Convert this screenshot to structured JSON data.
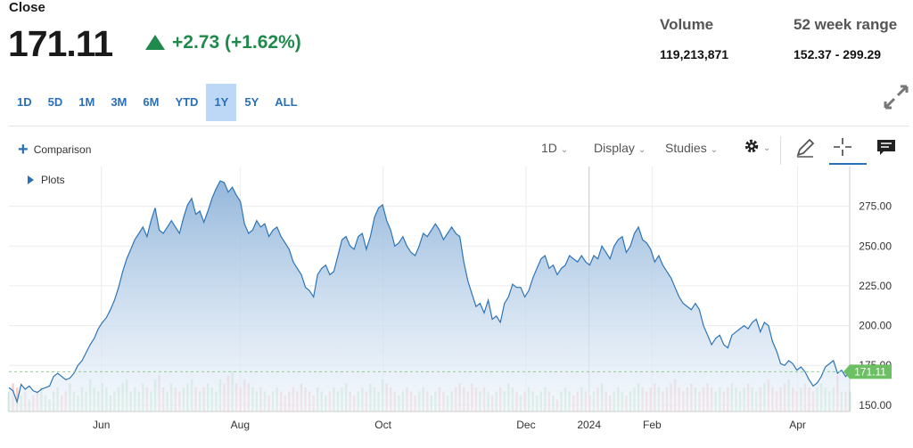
{
  "header": {
    "close_label": "Close",
    "price": "171.11",
    "change": "+2.73 (+1.62%)",
    "direction": "up",
    "up_color": "#1f8a4c"
  },
  "stats": {
    "volume_label": "Volume",
    "volume_value": "119,213,871",
    "range_label": "52 week range",
    "range_value": "152.37 - 299.29"
  },
  "range_tabs": [
    {
      "label": "1D"
    },
    {
      "label": "5D"
    },
    {
      "label": "1M"
    },
    {
      "label": "3M"
    },
    {
      "label": "6M"
    },
    {
      "label": "YTD"
    },
    {
      "label": "1Y",
      "active": true
    },
    {
      "label": "5Y"
    },
    {
      "label": "ALL"
    }
  ],
  "toolbar": {
    "comparison_label": "Comparison",
    "interval_label": "1D",
    "display_label": "Display",
    "studies_label": "Studies",
    "plots_label": "Plots",
    "expand_icon": "expand-icon",
    "settings_icon": "gear-icon",
    "draw_icon": "pencil-icon",
    "crosshair_icon": "crosshair-icon",
    "comment_icon": "comment-icon"
  },
  "colors": {
    "line": "#2d75b6",
    "fill_top": "#8eb3d9",
    "accent": "#2a6fb7",
    "last_price_tag": "#6cbf63"
  },
  "chart_data": {
    "type": "area",
    "title": "",
    "ylim": [
      146,
      300
    ],
    "y_ticks": [
      "150.00",
      "175.00",
      "200.00",
      "225.00",
      "250.00",
      "275.00"
    ],
    "x_tick_labels": [
      "Jun",
      "Aug",
      "Oct",
      "Dec",
      "2024",
      "Feb",
      "Apr"
    ],
    "last_price_label": "171.11",
    "grid": true,
    "series": [
      {
        "values": [
          161,
          159,
          152,
          163,
          160,
          162,
          159,
          158,
          160,
          161,
          162,
          168,
          170,
          168,
          166,
          167,
          170,
          175,
          178,
          183,
          188,
          192,
          198,
          202,
          205,
          210,
          216,
          224,
          234,
          242,
          248,
          254,
          258,
          262,
          256,
          266,
          274,
          260,
          258,
          262,
          266,
          262,
          258,
          268,
          276,
          280,
          270,
          272,
          265,
          272,
          280,
          286,
          291,
          290,
          284,
          287,
          282,
          278,
          264,
          258,
          260,
          266,
          262,
          264,
          256,
          260,
          262,
          256,
          252,
          248,
          240,
          236,
          232,
          224,
          222,
          218,
          232,
          236,
          238,
          232,
          234,
          244,
          254,
          256,
          250,
          248,
          256,
          258,
          248,
          256,
          268,
          274,
          276,
          266,
          260,
          250,
          252,
          256,
          250,
          246,
          244,
          250,
          258,
          256,
          260,
          264,
          260,
          254,
          258,
          262,
          258,
          256,
          240,
          228,
          220,
          212,
          214,
          208,
          216,
          204,
          206,
          202,
          214,
          218,
          226,
          224,
          224,
          218,
          222,
          230,
          236,
          242,
          244,
          236,
          238,
          232,
          236,
          238,
          244,
          242,
          240,
          244,
          240,
          238,
          244,
          242,
          250,
          246,
          242,
          250,
          254,
          256,
          246,
          250,
          258,
          262,
          254,
          252,
          248,
          240,
          244,
          238,
          234,
          230,
          224,
          218,
          214,
          212,
          210,
          214,
          210,
          200,
          194,
          188,
          192,
          194,
          188,
          186,
          194,
          196,
          198,
          200,
          198,
          202,
          204,
          196,
          202,
          200,
          190,
          184,
          176,
          175,
          178,
          176,
          172,
          174,
          171,
          166,
          162,
          164,
          168,
          174,
          176,
          178,
          170,
          172,
          168,
          171
        ],
        "volumes_relative": [
          0.5,
          0.7,
          0.6,
          0.4,
          0.5,
          0.3,
          0.4,
          0.5,
          0.6,
          0.4,
          0.3,
          0.5,
          0.6,
          0.4,
          0.5,
          0.7,
          0.5,
          0.4,
          0.6,
          0.5,
          0.8,
          0.6,
          0.5,
          0.7,
          0.6,
          0.4,
          0.5,
          0.6,
          0.7,
          0.8,
          0.5,
          0.6,
          0.5,
          0.7,
          0.6,
          0.5,
          0.8,
          0.9,
          0.6,
          0.5,
          0.7,
          0.6,
          0.5,
          0.6,
          0.7,
          0.8,
          0.6,
          0.5,
          0.6,
          0.7,
          0.6,
          0.5,
          0.8,
          0.7,
          0.9,
          1.0,
          0.7,
          0.6,
          0.8,
          0.7,
          0.6,
          0.5,
          0.6,
          0.5,
          0.4,
          0.5,
          0.6,
          0.5,
          0.4,
          0.5,
          0.6,
          0.5,
          0.7,
          0.6,
          0.5,
          0.4,
          0.6,
          0.5,
          0.4,
          0.5,
          0.6,
          0.5,
          0.6,
          0.7,
          0.5,
          0.4,
          0.5,
          0.6,
          0.5,
          0.7,
          0.6,
          0.5,
          0.8,
          0.7,
          0.6,
          0.5,
          0.4,
          0.5,
          0.6,
          0.5,
          0.4,
          0.5,
          0.6,
          0.5,
          0.4,
          0.5,
          0.6,
          0.5,
          0.4,
          0.5,
          0.6,
          0.7,
          0.6,
          0.5,
          0.7,
          0.6,
          0.5,
          0.6,
          0.5,
          0.4,
          0.5,
          0.6,
          0.5,
          0.7,
          0.6,
          0.5,
          0.4,
          0.5,
          0.6,
          0.5,
          0.4,
          0.5,
          0.6,
          0.5,
          0.4,
          0.3,
          0.5,
          0.6,
          0.5,
          0.4,
          0.5,
          0.6,
          0.5,
          0.4,
          0.5,
          0.6,
          0.7,
          0.5,
          0.4,
          0.5,
          0.6,
          0.5,
          0.4,
          0.5,
          0.6,
          0.7,
          0.6,
          0.5,
          0.6,
          0.7,
          0.6,
          0.5,
          0.6,
          0.7,
          0.8,
          0.6,
          0.5,
          0.6,
          0.7,
          0.6,
          0.5,
          0.6,
          0.7,
          0.6,
          0.5,
          0.6,
          0.5,
          0.6,
          0.7,
          0.6,
          0.5,
          0.6,
          0.7,
          0.6,
          0.5,
          0.6,
          0.7,
          0.8,
          0.6,
          0.5,
          0.6,
          0.7,
          0.8,
          0.6,
          0.5,
          0.6,
          0.7,
          0.6,
          0.5,
          0.6,
          0.7,
          0.6,
          0.5,
          0.6,
          0.9
        ]
      }
    ]
  }
}
